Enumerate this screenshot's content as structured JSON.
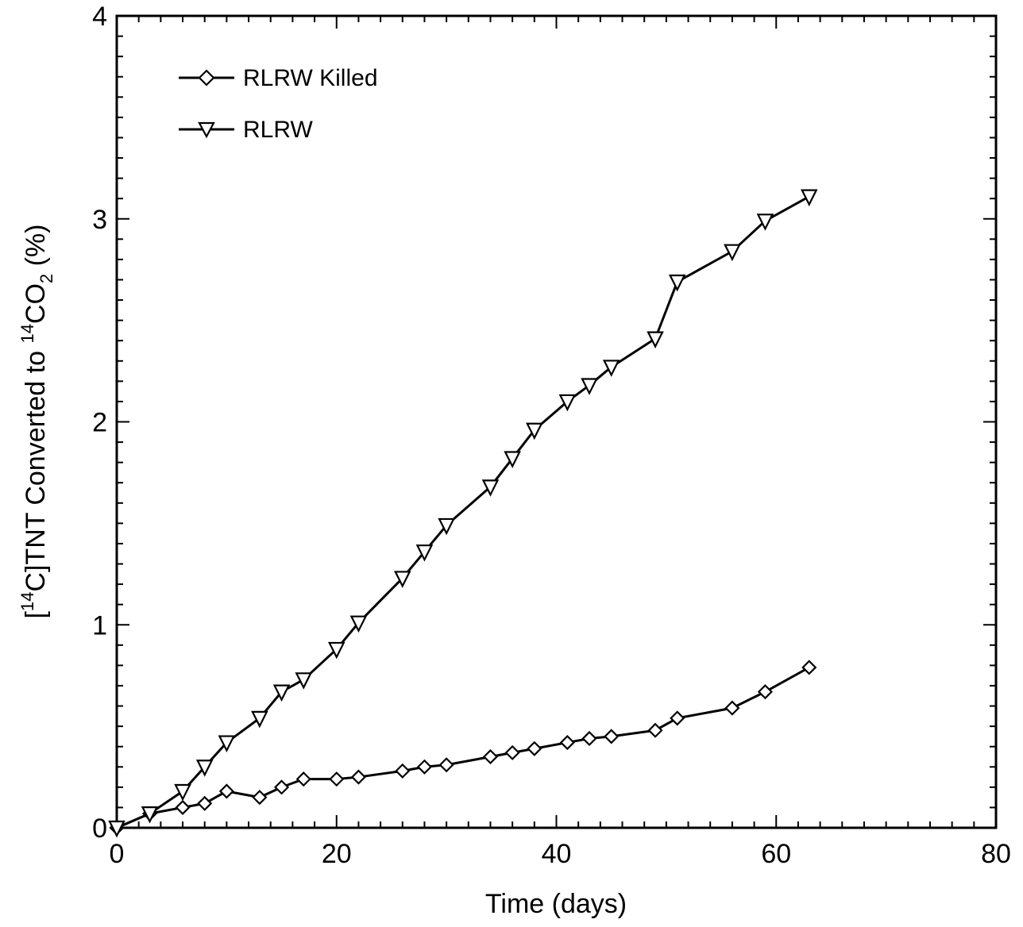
{
  "chart_data": {
    "type": "line",
    "xlabel": "Time (days)",
    "ylabel": {
      "parts": [
        "[",
        "14",
        "C]TNT Converted to ",
        "14",
        "CO",
        "2",
        " (%)"
      ]
    },
    "xlim": [
      0,
      80
    ],
    "ylim": [
      0,
      4
    ],
    "x_ticks": [
      0,
      20,
      40,
      60,
      80
    ],
    "y_ticks": [
      0,
      1,
      2,
      3,
      4
    ],
    "x_tick_labels": [
      "0",
      "20",
      "40",
      "60",
      "80"
    ],
    "y_tick_labels": [
      "0",
      "1",
      "2",
      "3",
      "4"
    ],
    "grid": false,
    "legend_position": "top-left",
    "series": [
      {
        "name": "RLRW Killed",
        "marker": "diamond",
        "x": [
          0,
          3,
          6,
          8,
          10,
          13,
          15,
          17,
          20,
          22,
          26,
          28,
          30,
          34,
          36,
          38,
          41,
          43,
          45,
          49,
          51,
          56,
          59,
          63
        ],
        "y": [
          0,
          0.07,
          0.1,
          0.12,
          0.18,
          0.15,
          0.2,
          0.24,
          0.24,
          0.25,
          0.28,
          0.3,
          0.31,
          0.35,
          0.37,
          0.39,
          0.42,
          0.44,
          0.45,
          0.48,
          0.54,
          0.59,
          0.67,
          0.79
        ]
      },
      {
        "name": "RLRW",
        "marker": "triangle-down",
        "x": [
          0,
          3,
          6,
          8,
          10,
          13,
          15,
          17,
          20,
          22,
          26,
          28,
          30,
          34,
          36,
          38,
          41,
          43,
          45,
          49,
          51,
          56,
          59,
          63
        ],
        "y": [
          0,
          0.07,
          0.18,
          0.3,
          0.42,
          0.54,
          0.67,
          0.73,
          0.88,
          1.01,
          1.23,
          1.36,
          1.49,
          1.68,
          1.82,
          1.96,
          2.1,
          2.18,
          2.27,
          2.41,
          2.69,
          2.84,
          2.99,
          3.11
        ]
      }
    ]
  }
}
